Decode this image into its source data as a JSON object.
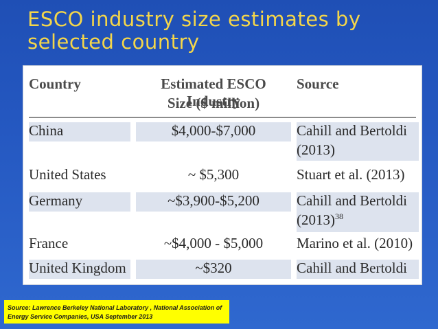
{
  "slide": {
    "title": "ESCO industry size estimates by selected country",
    "source": "Source: Lawrence Berkeley National Laboratory , National Association of Energy Service Companies, USA September 2013"
  },
  "table": {
    "headers": {
      "country": "Country",
      "size_line1": "Estimated ESCO Industry",
      "size_line2": "Size ($ million)",
      "source": "Source"
    },
    "rows": [
      {
        "country": "China",
        "size": "$4,000-$7,000",
        "source_line1": "Cahill and Bertoldi",
        "source_line2": "(2013)"
      },
      {
        "country": "United States",
        "size": "~ $5,300",
        "source_line1": "Stuart et al. (2013)"
      },
      {
        "country": "Germany",
        "size": "~$3,900-$5,200",
        "source_line1": "Cahill and Bertoldi",
        "source_line2": "(2013)",
        "source_sup": "38"
      },
      {
        "country": "France",
        "size": "~$4,000 - $5,000",
        "source_line1": "Marino et al. (2010)"
      },
      {
        "country": "United Kingdom",
        "size": "~$320",
        "source_line1": "Cahill and Bertoldi"
      }
    ]
  }
}
